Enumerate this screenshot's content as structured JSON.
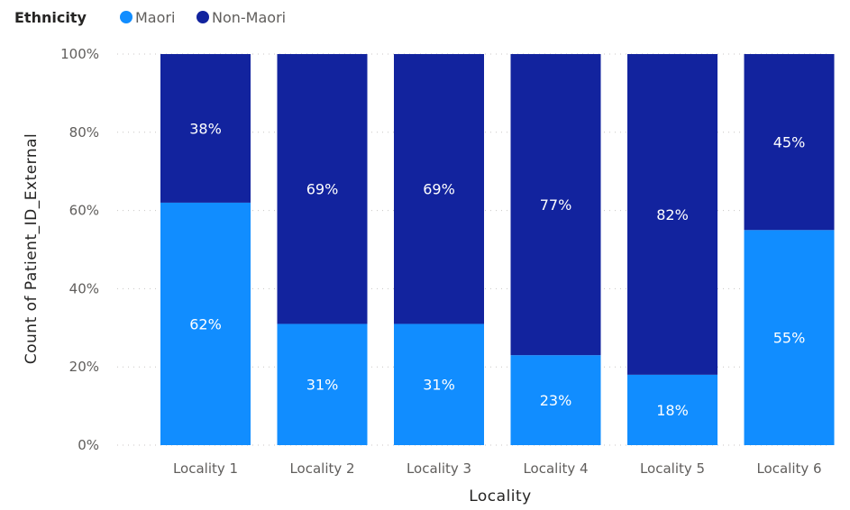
{
  "chart_data": {
    "type": "bar",
    "stacked": true,
    "normalized": true,
    "categories": [
      "Locality 1",
      "Locality 2",
      "Locality 3",
      "Locality 4",
      "Locality 5",
      "Locality 6"
    ],
    "series": [
      {
        "name": "Maori",
        "values": [
          62,
          31,
          31,
          23,
          18,
          55
        ],
        "labels": [
          "62%",
          "31%",
          "31%",
          "23%",
          "18%",
          "55%"
        ],
        "color": "#118dff"
      },
      {
        "name": "Non-Maori",
        "values": [
          38,
          69,
          69,
          77,
          82,
          45
        ],
        "labels": [
          "38%",
          "69%",
          "69%",
          "77%",
          "82%",
          "45%"
        ],
        "color": "#12239e"
      }
    ],
    "legend": {
      "title": "Ethnicity",
      "position": "top-left"
    },
    "xlabel": "Locality",
    "ylabel": "Count of Patient_ID_External",
    "ylim": [
      0,
      100
    ],
    "yticks": [
      0,
      20,
      40,
      60,
      80,
      100
    ],
    "ytick_labels": [
      "0%",
      "20%",
      "40%",
      "60%",
      "80%",
      "100%"
    ],
    "grid": true
  }
}
